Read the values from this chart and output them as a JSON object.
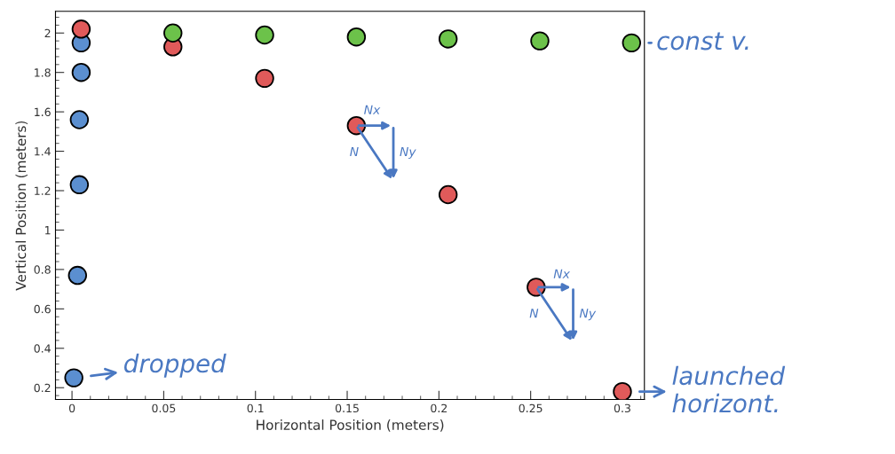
{
  "chart_data": {
    "type": "scatter",
    "xlabel": "Horizontal Position (meters)",
    "ylabel": "Vertical Position (meters)",
    "xlim": [
      -0.009,
      0.312
    ],
    "ylim": [
      0.14,
      2.11
    ],
    "xticks": [
      0,
      0.05,
      0.1,
      0.15,
      0.2,
      0.25,
      0.3
    ],
    "yticks": [
      0.2,
      0.4,
      0.6,
      0.8,
      1,
      1.2,
      1.4,
      1.6,
      1.8,
      2
    ],
    "marker": "circle",
    "grid": false,
    "legend": false,
    "series": [
      {
        "color": "#5b8fd0",
        "x": [
          0.005,
          0.005,
          0.004,
          0.004,
          0.003,
          0.001
        ],
        "values": [
          1.95,
          1.8,
          1.56,
          1.23,
          0.77,
          0.25
        ]
      },
      {
        "color": "#e05a5a",
        "x": [
          0.005,
          0.055,
          0.105,
          0.155,
          0.205,
          0.253,
          0.3
        ],
        "values": [
          2.02,
          1.93,
          1.77,
          1.53,
          1.18,
          0.71,
          0.18
        ]
      },
      {
        "color": "#6cc24a",
        "x": [
          0.055,
          0.105,
          0.155,
          0.205,
          0.255,
          0.305
        ],
        "values": [
          2.0,
          1.99,
          1.98,
          1.97,
          1.96,
          1.95
        ]
      }
    ],
    "annotations": [
      {
        "text": "const v.",
        "x": 0.305,
        "y": 1.95
      },
      {
        "text": "dropped",
        "x": 0.001,
        "y": 0.25
      },
      {
        "text": "launched\nhorizont.",
        "x": 0.3,
        "y": 0.18
      },
      {
        "text": "Nx",
        "x": 0.155,
        "y": 1.53
      },
      "Ny",
      "N",
      {
        "text": "Nx",
        "x": 0.253,
        "y": 0.71
      },
      "Ny",
      "N"
    ]
  }
}
